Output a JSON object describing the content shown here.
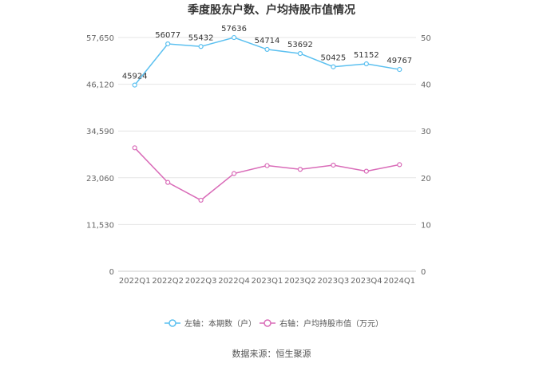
{
  "chart_data": {
    "type": "line",
    "title": "季度股东户数、户均持股市值情况",
    "categories": [
      "2022Q1",
      "2022Q2",
      "2022Q3",
      "2022Q4",
      "2023Q1",
      "2023Q2",
      "2023Q3",
      "2023Q4",
      "2024Q1"
    ],
    "left_axis": {
      "ticks": [
        "0",
        "11,530",
        "23,060",
        "34,590",
        "46,120",
        "57,650"
      ],
      "ylim": [
        0,
        57650
      ]
    },
    "right_axis": {
      "ticks": [
        "0",
        "10",
        "20",
        "30",
        "40",
        "50"
      ],
      "ylim": [
        0,
        50
      ]
    },
    "series": [
      {
        "name": "左轴：本期数（户）",
        "axis": "left",
        "color": "#5bc0f0",
        "values": [
          45924,
          56077,
          55432,
          57636,
          54714,
          53692,
          50425,
          51152,
          49767
        ],
        "labels": [
          "45924",
          "56077",
          "55432",
          "57636",
          "54714",
          "53692",
          "50425",
          "51152",
          "49767"
        ]
      },
      {
        "name": "右轴：户均持股市值（万元）",
        "axis": "right",
        "color": "#d96bb8",
        "values": [
          26.4,
          19.0,
          15.2,
          20.9,
          22.6,
          21.8,
          22.7,
          21.4,
          22.8
        ]
      }
    ],
    "grid": true,
    "legend_position": "bottom"
  },
  "source_text": "数据来源：恒生聚源"
}
